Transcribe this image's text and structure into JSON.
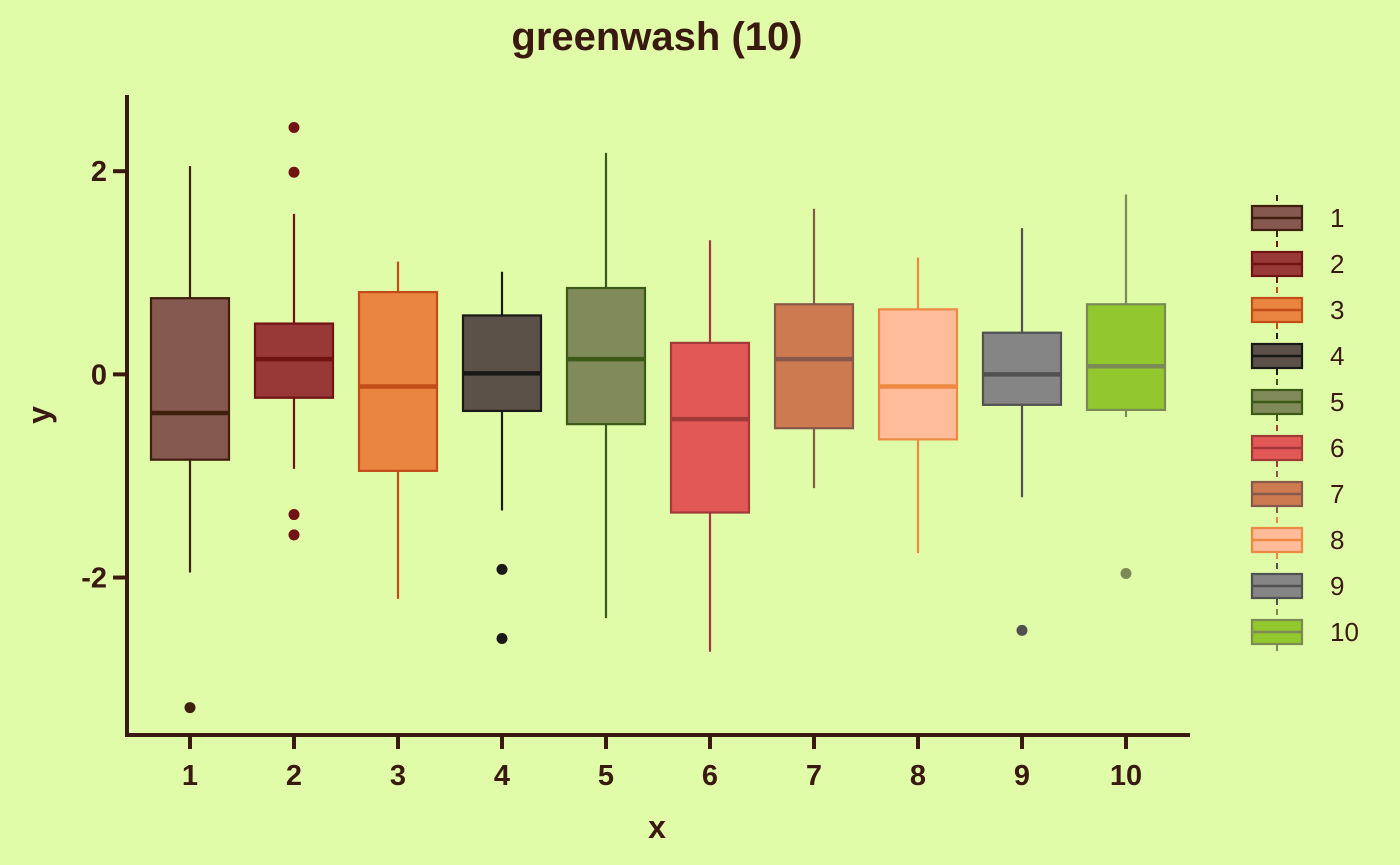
{
  "chart_data": {
    "type": "boxplot",
    "title": "greenwash (10)",
    "xlabel": "x",
    "ylabel": "y",
    "ylim": [
      -3.55,
      2.75
    ],
    "yticks": [
      {
        "value": 2,
        "label": "2"
      },
      {
        "value": 0,
        "label": "0"
      },
      {
        "value": -2,
        "label": "-2"
      }
    ],
    "categories": [
      "1",
      "2",
      "3",
      "4",
      "5",
      "6",
      "7",
      "8",
      "9",
      "10"
    ],
    "legend_position": "right",
    "grid": false,
    "boxes": [
      {
        "name": "1",
        "fill": "#855850",
        "stroke": "#3f1f0c",
        "whisker_low": -1.95,
        "q1": -0.84,
        "median": -0.38,
        "q3": 0.75,
        "whisker_high": 2.05,
        "outliers": [
          -3.28
        ]
      },
      {
        "name": "2",
        "fill": "#983837",
        "stroke": "#701313",
        "whisker_low": -0.93,
        "q1": -0.23,
        "median": 0.15,
        "q3": 0.5,
        "whisker_high": 1.58,
        "outliers": [
          2.43,
          1.99,
          -1.38,
          -1.58
        ]
      },
      {
        "name": "3",
        "fill": "#ea8441",
        "stroke": "#c24d18",
        "whisker_low": -2.21,
        "q1": -0.95,
        "median": -0.12,
        "q3": 0.81,
        "whisker_high": 1.11,
        "outliers": []
      },
      {
        "name": "4",
        "fill": "#5b5149",
        "stroke": "#191a17",
        "whisker_low": -1.34,
        "q1": -0.36,
        "median": 0.01,
        "q3": 0.58,
        "whisker_high": 1.01,
        "outliers": [
          -1.92,
          -2.6
        ]
      },
      {
        "name": "5",
        "fill": "#808b59",
        "stroke": "#3c5a17",
        "whisker_low": -2.4,
        "q1": -0.49,
        "median": 0.15,
        "q3": 0.85,
        "whisker_high": 2.18,
        "outliers": []
      },
      {
        "name": "6",
        "fill": "#e25856",
        "stroke": "#a23a3a",
        "whisker_low": -2.73,
        "q1": -1.36,
        "median": -0.44,
        "q3": 0.31,
        "whisker_high": 1.32,
        "outliers": []
      },
      {
        "name": "7",
        "fill": "#cd7a50",
        "stroke": "#87594d",
        "whisker_low": -1.12,
        "q1": -0.53,
        "median": 0.15,
        "q3": 0.69,
        "whisker_high": 1.63,
        "outliers": []
      },
      {
        "name": "8",
        "fill": "#ffbc9b",
        "stroke": "#ee8943",
        "whisker_low": -1.76,
        "q1": -0.64,
        "median": -0.12,
        "q3": 0.64,
        "whisker_high": 1.15,
        "outliers": []
      },
      {
        "name": "9",
        "fill": "#858585",
        "stroke": "#525151",
        "whisker_low": -1.21,
        "q1": -0.3,
        "median": 0.0,
        "q3": 0.41,
        "whisker_high": 1.44,
        "outliers": [
          -2.52
        ]
      },
      {
        "name": "10",
        "fill": "#92c72e",
        "stroke": "#7c8b56",
        "whisker_low": -0.42,
        "q1": -0.35,
        "median": 0.08,
        "q3": 0.69,
        "whisker_high": 1.77,
        "outliers": [
          -1.96
        ]
      }
    ],
    "colors": {
      "background": "#e1fca9",
      "axis": "#3a1a10",
      "text": "#3a1a10"
    }
  }
}
